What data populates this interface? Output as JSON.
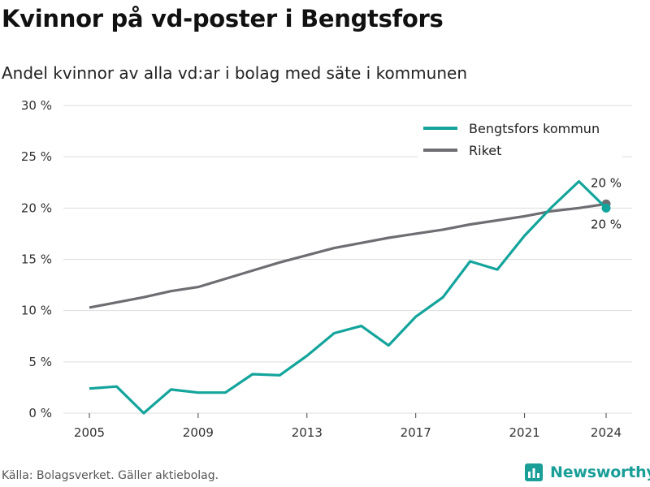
{
  "title": "Kvinnor på vd-poster i Bengtsfors",
  "subtitle": "Andel kvinnor av alla vd:ar i bolag med säte i kommunen",
  "source": "Källa: Bolagsverket. Gäller aktiebolag.",
  "brand": "Newsworthy",
  "colors": {
    "bengtsfors": "#13a49c",
    "riket": "#6e6e72",
    "grid": "#dddddd",
    "brand": "#1a9e98"
  },
  "chart_data": {
    "type": "line",
    "x": [
      2005,
      2006,
      2007,
      2008,
      2009,
      2010,
      2011,
      2012,
      2013,
      2014,
      2015,
      2016,
      2017,
      2018,
      2019,
      2020,
      2021,
      2022,
      2023,
      2024
    ],
    "series": [
      {
        "name": "Bengtsfors kommun",
        "color": "#13a49c",
        "values": [
          2.4,
          2.6,
          0.0,
          2.3,
          2.0,
          2.0,
          3.8,
          3.7,
          5.6,
          7.8,
          8.5,
          6.6,
          9.4,
          11.3,
          14.8,
          14.0,
          17.3,
          20.1,
          22.6,
          20.0
        ]
      },
      {
        "name": "Riket",
        "color": "#6e6e72",
        "values": [
          10.3,
          10.8,
          11.3,
          11.9,
          12.3,
          13.1,
          13.9,
          14.7,
          15.4,
          16.1,
          16.6,
          17.1,
          17.5,
          17.9,
          18.4,
          18.8,
          19.2,
          19.7,
          20.0,
          20.4
        ]
      }
    ],
    "x_ticks": [
      "2005",
      "2009",
      "2013",
      "2017",
      "2021",
      "2024"
    ],
    "x_tick_values": [
      2005,
      2009,
      2013,
      2017,
      2021,
      2024
    ],
    "y_ticks": [
      "0 %",
      "5 %",
      "10 %",
      "15 %",
      "20 %",
      "25 %",
      "30 %"
    ],
    "y_tick_values": [
      0,
      5,
      10,
      15,
      20,
      25,
      30
    ],
    "ylim": [
      0,
      30
    ],
    "xlim": [
      2005,
      2024
    ],
    "grid": true,
    "legend": "top-right",
    "end_labels": {
      "riket": "20 %",
      "bengtsfors": "20 %"
    }
  }
}
